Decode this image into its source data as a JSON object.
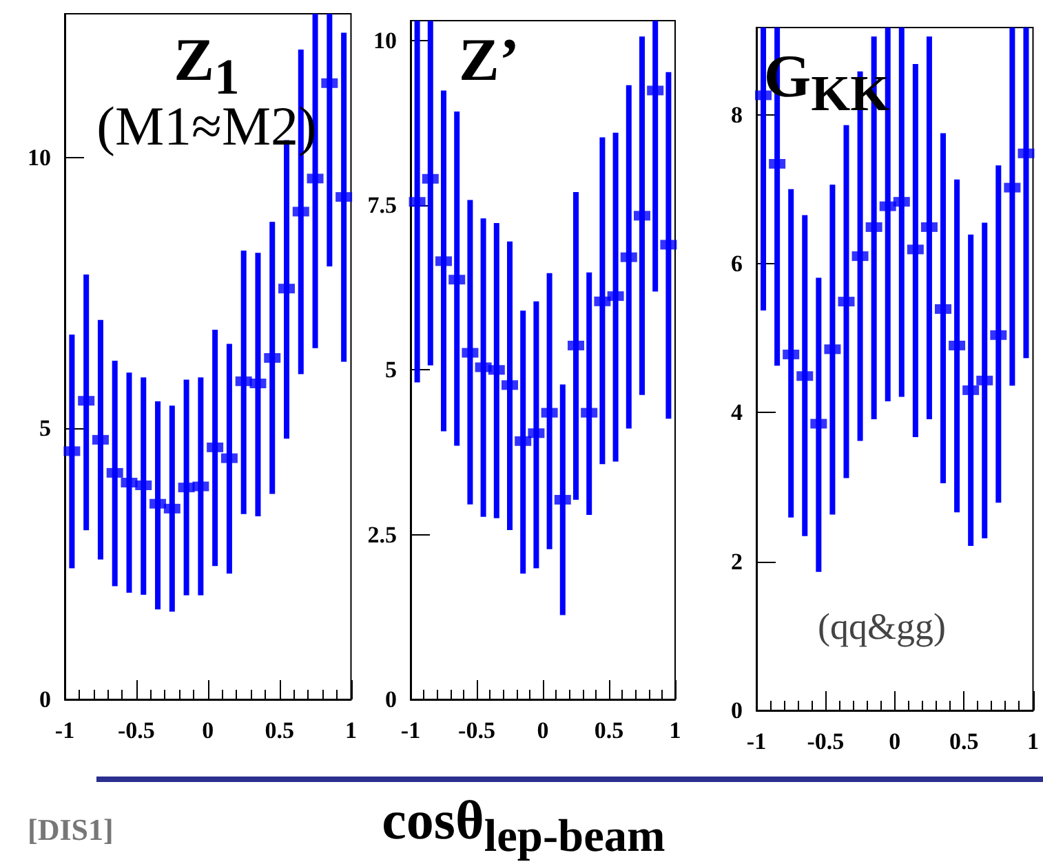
{
  "chart_data": [
    {
      "type": "scatter",
      "title": "Z$_{1}$",
      "annotations": [
        "(M1≈M2)",
        "[DIS1]"
      ],
      "color": "#0000ff",
      "marker": "square",
      "x": [
        -0.95,
        -0.85,
        -0.75,
        -0.65,
        -0.55,
        -0.45,
        -0.35,
        -0.25,
        -0.15,
        -0.05,
        0.05,
        0.15,
        0.25,
        0.35,
        0.45,
        0.55,
        0.65,
        0.75,
        0.85,
        0.95
      ],
      "values": [
        4.58,
        5.51,
        4.79,
        4.18,
        4.0,
        3.95,
        3.61,
        3.52,
        3.91,
        3.93,
        4.65,
        4.45,
        5.87,
        5.83,
        6.3,
        7.58,
        9.0,
        9.61,
        11.37,
        9.27
      ],
      "errors": [
        [
          2.42,
          6.73
        ],
        [
          3.12,
          7.84
        ],
        [
          2.58,
          7.0
        ],
        [
          2.09,
          6.25
        ],
        [
          1.97,
          6.03
        ],
        [
          1.93,
          5.94
        ],
        [
          1.66,
          5.5
        ],
        [
          1.62,
          5.42
        ],
        [
          1.92,
          5.9
        ],
        [
          1.92,
          5.94
        ],
        [
          2.46,
          6.82
        ],
        [
          2.32,
          6.56
        ],
        [
          3.42,
          8.28
        ],
        [
          3.38,
          8.24
        ],
        [
          3.79,
          8.81
        ],
        [
          4.81,
          10.32
        ],
        [
          6.0,
          11.99
        ],
        [
          6.48,
          12.65
        ],
        [
          7.99,
          12.65
        ],
        [
          6.23,
          12.3
        ]
      ],
      "xlim": [
        -1,
        1
      ],
      "xticks": [
        -1,
        -0.5,
        0,
        0.5,
        1
      ],
      "ylim": [
        0,
        12.65
      ],
      "yticks": [
        0,
        5,
        10
      ]
    },
    {
      "type": "scatter",
      "title": "Z’",
      "xlabel": "cosθ$_{lep-beam}$",
      "color": "#0000ff",
      "marker": "square",
      "x": [
        -0.95,
        -0.85,
        -0.75,
        -0.65,
        -0.55,
        -0.45,
        -0.35,
        -0.25,
        -0.15,
        -0.05,
        0.05,
        0.15,
        0.25,
        0.35,
        0.45,
        0.55,
        0.65,
        0.75,
        0.85,
        0.95
      ],
      "values": [
        7.55,
        7.9,
        6.65,
        6.37,
        5.26,
        5.04,
        5.0,
        4.77,
        3.92,
        4.04,
        4.35,
        3.03,
        5.37,
        4.35,
        6.04,
        6.12,
        6.71,
        7.34,
        9.24,
        6.9
      ],
      "errors": [
        [
          4.81,
          10.3
        ],
        [
          5.07,
          10.3
        ],
        [
          4.07,
          9.24
        ],
        [
          3.85,
          8.92
        ],
        [
          2.96,
          7.58
        ],
        [
          2.77,
          7.3
        ],
        [
          2.75,
          7.23
        ],
        [
          2.57,
          6.95
        ],
        [
          1.91,
          5.9
        ],
        [
          1.99,
          6.04
        ],
        [
          2.28,
          6.47
        ],
        [
          1.28,
          4.78
        ],
        [
          3.03,
          7.7
        ],
        [
          2.8,
          6.48
        ],
        [
          3.57,
          8.53
        ],
        [
          3.61,
          8.6
        ],
        [
          4.11,
          9.32
        ],
        [
          4.62,
          10.06
        ],
        [
          6.19,
          10.3
        ],
        [
          4.26,
          9.52
        ]
      ],
      "xlim": [
        -1,
        1
      ],
      "xticks": [
        -1,
        -0.5,
        0,
        0.5,
        1
      ],
      "ylim": [
        0,
        10.3
      ],
      "yticks": [
        0,
        2.5,
        5,
        7.5,
        10
      ]
    },
    {
      "type": "scatter",
      "title": "G$_{KK}$",
      "annotations": [
        "(qq&gg)"
      ],
      "color": "#0000ff",
      "marker": "square",
      "x": [
        -0.95,
        -0.85,
        -0.75,
        -0.65,
        -0.55,
        -0.45,
        -0.35,
        -0.25,
        -0.15,
        -0.05,
        0.05,
        0.15,
        0.25,
        0.35,
        0.45,
        0.55,
        0.65,
        0.75,
        0.85,
        0.95
      ],
      "values": [
        8.26,
        7.34,
        4.78,
        4.49,
        3.85,
        4.85,
        5.49,
        6.1,
        6.49,
        6.77,
        6.83,
        6.19,
        6.49,
        5.39,
        4.9,
        4.3,
        4.43,
        5.04,
        7.02,
        7.48
      ],
      "errors": [
        [
          5.37,
          9.17
        ],
        [
          4.63,
          9.17
        ],
        [
          2.59,
          7.0
        ],
        [
          2.34,
          6.65
        ],
        [
          1.86,
          5.81
        ],
        [
          2.63,
          7.06
        ],
        [
          3.12,
          7.86
        ],
        [
          3.62,
          8.58
        ],
        [
          3.91,
          9.05
        ],
        [
          4.15,
          9.17
        ],
        [
          4.21,
          9.17
        ],
        [
          3.67,
          8.68
        ],
        [
          3.91,
          9.05
        ],
        [
          3.05,
          7.75
        ],
        [
          2.66,
          7.13
        ],
        [
          2.21,
          6.39
        ],
        [
          2.31,
          6.55
        ],
        [
          2.79,
          7.32
        ],
        [
          4.36,
          9.17
        ],
        [
          4.73,
          9.17
        ]
      ],
      "xlim": [
        -1,
        1
      ],
      "xticks": [
        -1,
        -0.5,
        0,
        0.5,
        1
      ],
      "ylim": [
        0,
        9.17
      ],
      "yticks": [
        0,
        2,
        4,
        6,
        8
      ]
    }
  ]
}
